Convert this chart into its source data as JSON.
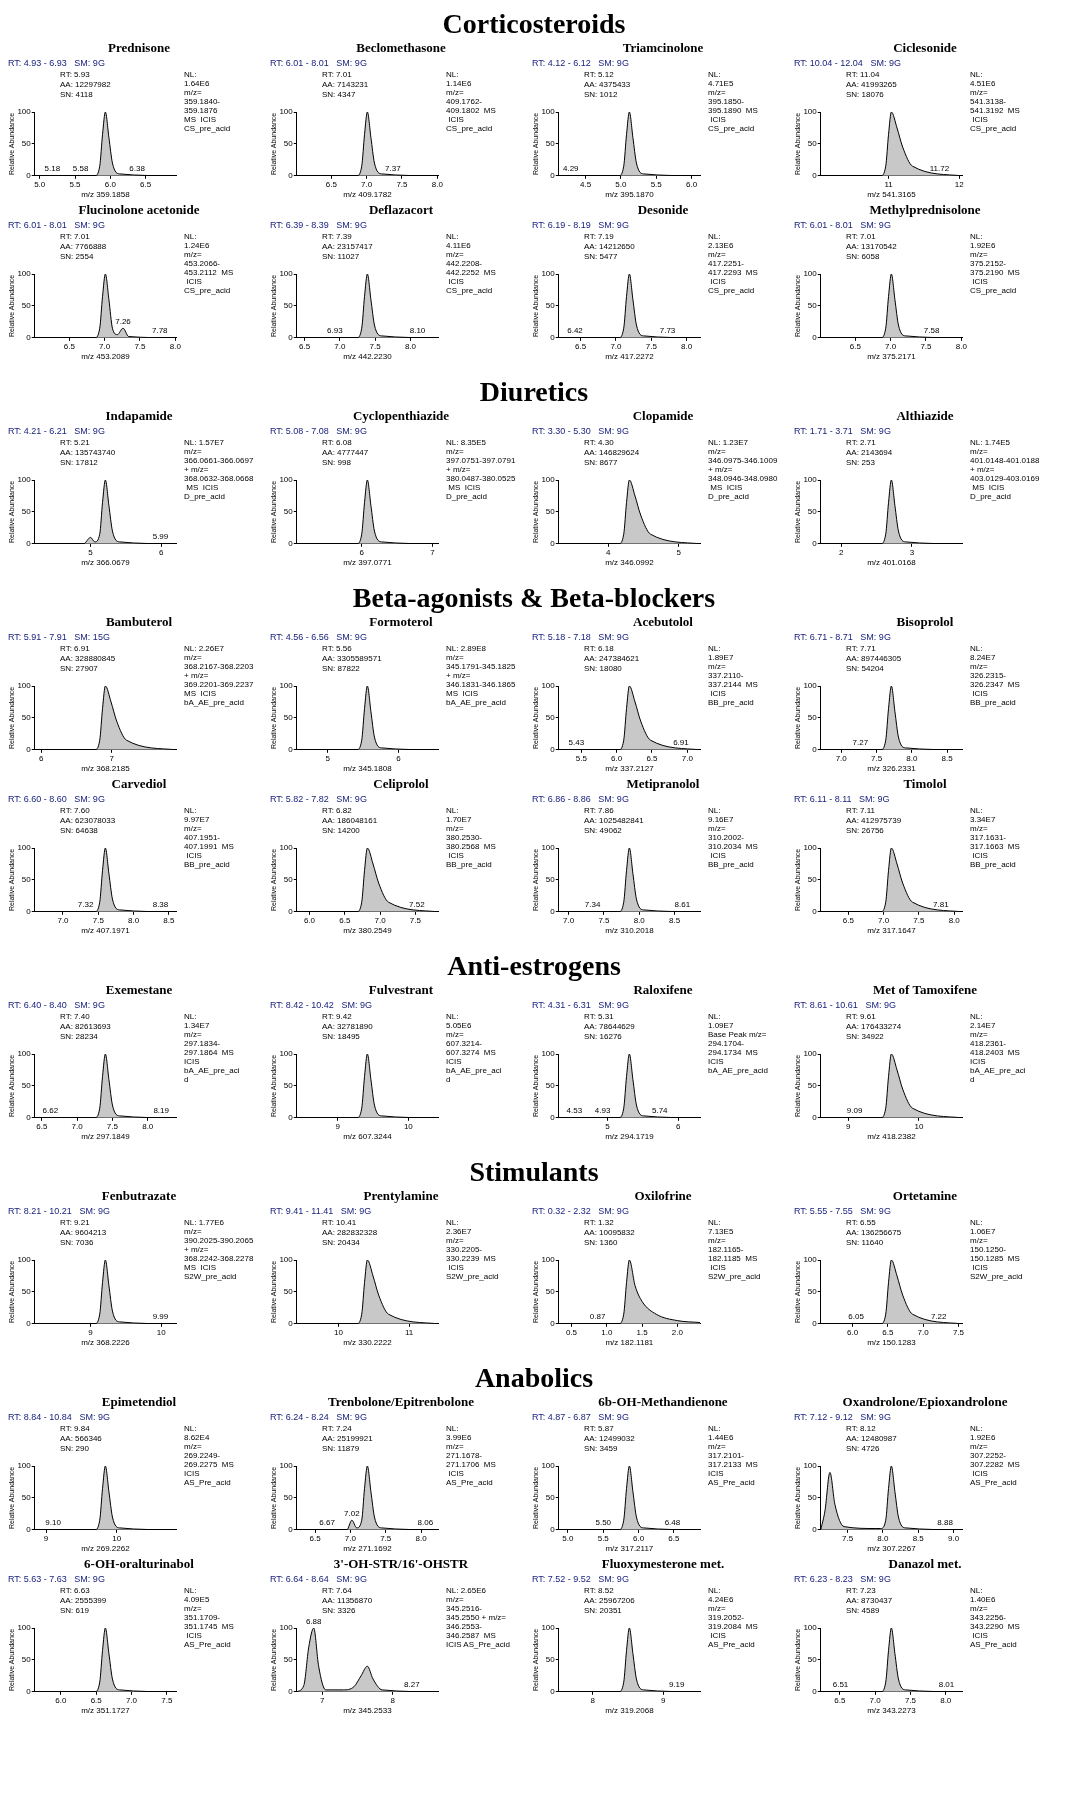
{
  "chart_data": [
    {
      "type": "area",
      "title": "Prednisone",
      "color": "#c8c8c8",
      "xlabel": "m/z 359.1858",
      "ylabel": "Relative Abundance",
      "x": [
        4.93,
        5.78,
        5.85,
        5.89,
        5.93,
        5.98,
        6.03,
        6.13,
        6.93
      ],
      "values": [
        0,
        0,
        15,
        65,
        100,
        60,
        20,
        3,
        0
      ],
      "xlim": [
        4.93,
        6.93
      ],
      "xticks": [
        {
          "value": 5,
          "label": "5.0"
        },
        5.5,
        {
          "value": 6,
          "label": "6.0"
        },
        6.5
      ],
      "ylim": [
        0,
        100
      ],
      "yticks": [
        0,
        50,
        100
      ],
      "annotations": [
        "RT: 4.93 - 6.93   SM: 9G",
        "RT: 5.93\nAA: 12297982\nSN: 4118",
        "NL:\n1.64E6\nm/z=\n359.1840-\n359.1876\nMS  ICIS\nCS_pre_acid",
        {
          "text": "5.18",
          "x": 5.18,
          "y": 2
        },
        {
          "text": "5.58",
          "x": 5.58,
          "y": 2
        },
        {
          "text": "6.38",
          "x": 6.38,
          "y": 2
        }
      ]
    },
    {
      "type": "area",
      "subtitle": "Corticosteroids",
      "title": "Beclomethasone",
      "color": "#c8c8c8",
      "xlabel": "m/z 409.1782",
      "ylabel": "Relative Abundance",
      "x": [
        6.01,
        6.86,
        6.93,
        6.97,
        7.01,
        7.06,
        7.11,
        7.21,
        8.01
      ],
      "values": [
        0,
        0,
        15,
        65,
        100,
        60,
        20,
        3,
        0
      ],
      "xlim": [
        6.01,
        8.01
      ],
      "xticks": [
        6.5,
        {
          "value": 7,
          "label": "7.0"
        },
        7.5,
        {
          "value": 8,
          "label": "8.0"
        }
      ],
      "ylim": [
        0,
        100
      ],
      "yticks": [
        0,
        50,
        100
      ],
      "annotations": [
        "RT: 6.01 - 8.01   SM: 9G",
        "RT: 7.01\nAA: 7143231\nSN: 4347",
        "NL:\n1.14E6\nm/z=\n409.1762-\n409.1802  MS\n ICIS\nCS_pre_acid",
        {
          "text": "7.37",
          "x": 7.37,
          "y": 2
        }
      ]
    },
    {
      "type": "area",
      "title": "Triamcinolone",
      "color": "#c8c8c8",
      "xlabel": "m/z 395.1870",
      "ylabel": "Relative Abundance",
      "x": [
        4.12,
        4.97,
        5.04,
        5.08,
        5.12,
        5.17,
        5.22,
        5.32,
        6.12
      ],
      "values": [
        0,
        0,
        15,
        65,
        100,
        60,
        20,
        3,
        0
      ],
      "xlim": [
        4.12,
        6.12
      ],
      "xticks": [
        4.5,
        {
          "value": 5,
          "label": "5.0"
        },
        5.5,
        {
          "value": 6,
          "label": "6.0"
        }
      ],
      "ylim": [
        0,
        100
      ],
      "yticks": [
        0,
        50,
        100
      ],
      "annotations": [
        "RT: 4.12 - 6.12   SM: 9G",
        "RT: 5.12\nAA: 4375433\nSN: 1012",
        "NL:\n4.71E5\nm/z=\n395.1850-\n395.1890  MS\n ICIS\nCS_pre_acid",
        {
          "text": "4.29",
          "x": 4.29,
          "y": 2
        }
      ]
    },
    {
      "type": "area",
      "title": "Ciclesonide",
      "color": "#c8c8c8",
      "xlabel": "m/z 541.3165",
      "ylabel": "Relative Abundance",
      "x": [
        10.04,
        10.89,
        10.96,
        11.0,
        11.04,
        11.12,
        11.2,
        11.34,
        12.04
      ],
      "values": [
        0,
        0,
        15,
        65,
        100,
        75,
        45,
        15,
        0
      ],
      "xlim": [
        10.04,
        12.04
      ],
      "xticks": [
        11,
        12
      ],
      "ylim": [
        0,
        100
      ],
      "yticks": [
        0,
        50,
        100
      ],
      "annotations": [
        "RT: 10.04 - 12.04   SM: 9G",
        "RT: 11.04\nAA: 41993265\nSN: 18076",
        "NL:\n4.51E6\nm/z=\n541.3138-\n541.3192  MS\n ICIS\nCS_pre_acid",
        {
          "text": "11.72",
          "x": 11.72,
          "y": 2
        }
      ]
    },
    {
      "type": "area",
      "title": "Flucinolone acetonide",
      "color": "#c8c8c8",
      "xlabel": "m/z 453.2089",
      "ylabel": "Relative Abundance",
      "x": [
        6.01,
        6.86,
        6.93,
        6.97,
        7.01,
        7.06,
        7.11,
        7.18,
        7.26,
        7.34,
        8.01
      ],
      "values": [
        0,
        0,
        15,
        65,
        100,
        60,
        15,
        5,
        15,
        2,
        0
      ],
      "xlim": [
        6.01,
        8.01
      ],
      "xticks": [
        6.5,
        {
          "value": 7,
          "label": "7.0"
        },
        7.5,
        {
          "value": 8,
          "label": "8.0"
        }
      ],
      "ylim": [
        0,
        100
      ],
      "yticks": [
        0,
        50,
        100
      ],
      "annotations": [
        "RT: 6.01 - 8.01   SM: 9G",
        "RT: 7.01\nAA: 7766888\nSN: 2554",
        "NL:\n1.24E6\nm/z=\n453.2066-\n453.2112  MS\n ICIS\nCS_pre_acid",
        {
          "text": "7.26",
          "x": 7.26,
          "y": 15
        },
        {
          "text": "7.78",
          "x": 7.78,
          "y": 2
        }
      ]
    },
    {
      "type": "area",
      "title": "Deflazacort",
      "color": "#c8c8c8",
      "xlabel": "m/z 442.2230",
      "ylabel": "Relative Abundance",
      "x": [
        6.39,
        7.24,
        7.31,
        7.35,
        7.39,
        7.44,
        7.49,
        7.59,
        8.39
      ],
      "values": [
        0,
        0,
        15,
        65,
        100,
        60,
        20,
        3,
        0
      ],
      "xlim": [
        6.39,
        8.39
      ],
      "xticks": [
        6.5,
        {
          "value": 7,
          "label": "7.0"
        },
        7.5,
        {
          "value": 8,
          "label": "8.0"
        }
      ],
      "ylim": [
        0,
        100
      ],
      "yticks": [
        0,
        50,
        100
      ],
      "annotations": [
        "RT: 6.39 - 8.39   SM: 9G",
        "RT: 7.39\nAA: 23157417\nSN: 11027",
        "NL:\n4.11E6\nm/z=\n442.2208-\n442.2252  MS\n ICIS\nCS_pre_acid",
        {
          "text": "6.93",
          "x": 6.93,
          "y": 2
        },
        {
          "text": "8.10",
          "x": 8.1,
          "y": 2
        }
      ]
    },
    {
      "type": "area",
      "title": "Desonide",
      "color": "#c8c8c8",
      "xlabel": "m/z 417.2272",
      "ylabel": "Relative Abundance",
      "x": [
        6.19,
        7.04,
        7.11,
        7.15,
        7.19,
        7.24,
        7.29,
        7.39,
        8.19
      ],
      "values": [
        0,
        0,
        15,
        65,
        100,
        60,
        20,
        3,
        0
      ],
      "xlim": [
        6.19,
        8.19
      ],
      "xticks": [
        6.5,
        {
          "value": 7,
          "label": "7.0"
        },
        7.5,
        {
          "value": 8,
          "label": "8.0"
        }
      ],
      "ylim": [
        0,
        100
      ],
      "yticks": [
        0,
        50,
        100
      ],
      "annotations": [
        "RT: 6.19 - 8.19   SM: 9G",
        "RT: 7.19\nAA: 14212650\nSN: 5477",
        "NL:\n2.13E6\nm/z=\n417.2251-\n417.2293  MS\n ICIS\nCS_pre_acid",
        {
          "text": "6.42",
          "x": 6.42,
          "y": 2
        },
        {
          "text": "7.73",
          "x": 7.73,
          "y": 2
        }
      ]
    },
    {
      "type": "area",
      "title": "Methylprednisolone",
      "color": "#c8c8c8",
      "xlabel": "m/z 375.2171",
      "ylabel": "Relative Abundance",
      "x": [
        6.01,
        6.86,
        6.93,
        6.97,
        7.01,
        7.06,
        7.11,
        7.21,
        8.01
      ],
      "values": [
        0,
        0,
        15,
        65,
        100,
        60,
        20,
        3,
        0
      ],
      "xlim": [
        6.01,
        8.01
      ],
      "xticks": [
        6.5,
        {
          "value": 7,
          "label": "7.0"
        },
        7.5,
        {
          "value": 8,
          "label": "8.0"
        }
      ],
      "ylim": [
        0,
        100
      ],
      "yticks": [
        0,
        50,
        100
      ],
      "annotations": [
        "RT: 6.01 - 8.01   SM: 9G",
        "RT: 7.01\nAA: 13170542\nSN: 6058",
        "NL:\n1.92E6\nm/z=\n375.2152-\n375.2190  MS\n ICIS\nCS_pre_acid",
        {
          "text": "7.58",
          "x": 7.58,
          "y": 2
        }
      ]
    },
    {
      "type": "area",
      "title": "Indapamide",
      "color": "#c8c8c8",
      "xlabel": "m/z 366.0679",
      "ylabel": "Relative Abundance",
      "x": [
        4.21,
        4.9,
        5.0,
        5.06,
        5.13,
        5.17,
        5.21,
        5.26,
        5.31,
        5.41,
        6.21
      ],
      "values": [
        0,
        0,
        10,
        3,
        15,
        65,
        100,
        60,
        20,
        3,
        0
      ],
      "xlim": [
        4.21,
        6.21
      ],
      "xticks": [
        5,
        6
      ],
      "ylim": [
        0,
        100
      ],
      "yticks": [
        0,
        50,
        100
      ],
      "annotations": [
        "RT: 4.21 - 6.21   SM: 9G",
        "RT: 5.21\nAA: 135743740\nSN: 17812",
        "NL: 1.57E7\nm/z=\n366.0661-366.0697\n+ m/z=\n368.0632-368.0668\n MS  ICIS\nD_pre_acid",
        {
          "text": "5.99",
          "x": 5.99,
          "y": 2
        }
      ]
    },
    {
      "type": "area",
      "title": "Cyclopenthiazide",
      "color": "#c8c8c8",
      "xlabel": "m/z 397.0771",
      "ylabel": "Relative Abundance",
      "x": [
        5.08,
        5.93,
        6.0,
        6.04,
        6.08,
        6.13,
        6.18,
        6.28,
        7.08
      ],
      "values": [
        0,
        0,
        15,
        65,
        100,
        60,
        20,
        3,
        0
      ],
      "xlim": [
        5.08,
        7.08
      ],
      "xticks": [
        6,
        7
      ],
      "ylim": [
        0,
        100
      ],
      "yticks": [
        0,
        50,
        100
      ],
      "annotations": [
        "RT: 5.08 - 7.08   SM: 9G",
        "RT: 6.08\nAA: 4777447\nSN: 998",
        "NL: 8.35E5\nm/z=\n397.0751-397.0791\n+ m/z=\n380.0487-380.0525\n MS  ICIS\nD_pre_acid"
      ]
    },
    {
      "type": "area",
      "subtitle": "Diuretics",
      "title": "Clopamide",
      "color": "#c8c8c8",
      "xlabel": "m/z 346.0992",
      "ylabel": "Relative Abundance",
      "x": [
        3.3,
        4.15,
        4.22,
        4.26,
        4.3,
        4.38,
        4.46,
        4.6,
        5.3
      ],
      "values": [
        0,
        0,
        15,
        65,
        100,
        75,
        45,
        15,
        0
      ],
      "xlim": [
        3.3,
        5.3
      ],
      "xticks": [
        4,
        5
      ],
      "ylim": [
        0,
        100
      ],
      "yticks": [
        0,
        50,
        100
      ],
      "annotations": [
        "RT: 3.30 - 5.30   SM: 9G",
        "RT: 4.30\nAA: 146829624\nSN: 8677",
        "NL: 1.23E7\nm/z=\n346.0975-346.1009\n+ m/z=\n348.0946-348.0980\n MS  ICIS\nD_pre_acid"
      ]
    },
    {
      "type": "area",
      "title": "Althiazide",
      "color": "#c8c8c8",
      "xlabel": "m/z 401.0168",
      "ylabel": "Relative Abundance",
      "x": [
        1.71,
        2.56,
        2.63,
        2.67,
        2.71,
        2.76,
        2.81,
        2.91,
        3.71
      ],
      "values": [
        0,
        0,
        15,
        65,
        100,
        60,
        20,
        3,
        0
      ],
      "xlim": [
        1.71,
        3.71
      ],
      "xticks": [
        2,
        3
      ],
      "ylim": [
        0,
        100
      ],
      "yticks": [
        0,
        50,
        100
      ],
      "annotations": [
        "RT: 1.71 - 3.71   SM: 9G",
        "RT: 2.71\nAA: 2143694\nSN: 253",
        "NL: 1.74E5\nm/z=\n401.0148-401.0188\n+ m/z=\n403.0129-403.0169\n MS  ICIS\nD_pre_acid"
      ]
    },
    {
      "type": "area",
      "title": "Bambuterol",
      "color": "#c8c8c8",
      "xlabel": "m/z 368.2185",
      "ylabel": "Relative Abundance",
      "x": [
        5.91,
        6.76,
        6.83,
        6.87,
        6.91,
        6.99,
        7.07,
        7.21,
        7.91
      ],
      "values": [
        0,
        0,
        15,
        65,
        100,
        75,
        45,
        15,
        0
      ],
      "xlim": [
        5.91,
        7.91
      ],
      "xticks": [
        6,
        7
      ],
      "ylim": [
        0,
        100
      ],
      "yticks": [
        0,
        50,
        100
      ],
      "annotations": [
        "RT: 5.91 - 7.91   SM: 15G",
        "RT: 6.91\nAA: 328880845\nSN: 27907",
        "NL: 2.26E7\nm/z=\n368.2167-368.2203\n+ m/z=\n369.2201-369.2237\nMS  ICIS\nbA_AE_pre_acid"
      ]
    },
    {
      "type": "area",
      "subtitle": "Beta-agonists & Beta-blockers",
      "title": "Formoterol",
      "color": "#c8c8c8",
      "xlabel": "m/z 345.1808",
      "ylabel": "Relative Abundance",
      "x": [
        4.56,
        5.41,
        5.48,
        5.52,
        5.56,
        5.61,
        5.66,
        5.76,
        6.56
      ],
      "values": [
        0,
        0,
        15,
        65,
        100,
        60,
        20,
        3,
        0
      ],
      "xlim": [
        4.56,
        6.56
      ],
      "xticks": [
        5,
        6
      ],
      "ylim": [
        0,
        100
      ],
      "yticks": [
        0,
        50,
        100
      ],
      "annotations": [
        "RT: 4.56 - 6.56   SM: 9G",
        "RT: 5.56\nAA: 3305589571\nSN: 87822",
        "NL: 2.89E8\nm/z=\n345.1791-345.1825\n+ m/z=\n346.1831-346.1865\nMS  ICIS\nbA_AE_pre_acid"
      ]
    },
    {
      "type": "area",
      "title": "Acebutolol",
      "color": "#c8c8c8",
      "xlabel": "m/z 337.2127",
      "ylabel": "Relative Abundance",
      "x": [
        5.18,
        6.03,
        6.1,
        6.14,
        6.18,
        6.26,
        6.34,
        6.48,
        7.18
      ],
      "values": [
        0,
        0,
        15,
        65,
        100,
        75,
        45,
        15,
        0
      ],
      "xlim": [
        5.18,
        7.18
      ],
      "xticks": [
        5.5,
        {
          "value": 6,
          "label": "6.0"
        },
        6.5,
        {
          "value": 7,
          "label": "7.0"
        }
      ],
      "ylim": [
        0,
        100
      ],
      "yticks": [
        0,
        50,
        100
      ],
      "annotations": [
        "RT: 5.18 - 7.18   SM: 9G",
        "RT: 6.18\nAA: 247384621\nSN: 18080",
        "NL:\n1.89E7\nm/z=\n337.2110-\n337.2144  MS\n ICIS\nBB_pre_acid",
        {
          "text": "5.43",
          "x": 5.43,
          "y": 2
        },
        {
          "text": "6.91",
          "x": 6.91,
          "y": 2
        }
      ]
    },
    {
      "type": "area",
      "title": "Bisoprolol",
      "color": "#c8c8c8",
      "xlabel": "m/z 326.2331",
      "ylabel": "Relative Abundance",
      "x": [
        6.71,
        7.56,
        7.63,
        7.67,
        7.71,
        7.76,
        7.81,
        7.91,
        8.71
      ],
      "values": [
        0,
        0,
        15,
        65,
        100,
        60,
        20,
        3,
        0
      ],
      "xlim": [
        6.71,
        8.71
      ],
      "xticks": [
        {
          "value": 7,
          "label": "7.0"
        },
        7.5,
        {
          "value": 8,
          "label": "8.0"
        },
        8.5
      ],
      "ylim": [
        0,
        100
      ],
      "yticks": [
        0,
        50,
        100
      ],
      "annotations": [
        "RT: 6.71 - 8.71   SM: 9G",
        "RT: 7.71\nAA: 897446305\nSN: 54204",
        "NL:\n8.24E7\nm/z=\n326.2315-\n326.2347  MS\n ICIS\nBB_pre_acid",
        {
          "text": "7.27",
          "x": 7.27,
          "y": 2
        }
      ]
    },
    {
      "type": "area",
      "title": "Carvediol",
      "color": "#c8c8c8",
      "xlabel": "m/z 407.1971",
      "ylabel": "Relative Abundance",
      "x": [
        6.6,
        7.45,
        7.52,
        7.56,
        7.6,
        7.65,
        7.7,
        7.8,
        8.6
      ],
      "values": [
        0,
        0,
        15,
        65,
        100,
        60,
        20,
        3,
        0
      ],
      "xlim": [
        6.6,
        8.6
      ],
      "xticks": [
        {
          "value": 7,
          "label": "7.0"
        },
        7.5,
        {
          "value": 8,
          "label": "8.0"
        },
        8.5
      ],
      "ylim": [
        0,
        100
      ],
      "yticks": [
        0,
        50,
        100
      ],
      "annotations": [
        "RT: 6.60 - 8.60   SM: 9G",
        "RT: 7.60\nAA: 623078033\nSN: 64638",
        "NL:\n9.97E7\nm/z=\n407.1951-\n407.1991  MS\n ICIS\nBB_pre_acid",
        {
          "text": "7.32",
          "x": 7.32,
          "y": 2
        },
        {
          "text": "8.38",
          "x": 8.38,
          "y": 2
        }
      ]
    },
    {
      "type": "area",
      "title": "Celiprolol",
      "color": "#c8c8c8",
      "xlabel": "m/z 380.2549",
      "ylabel": "Relative Abundance",
      "x": [
        5.82,
        6.67,
        6.74,
        6.78,
        6.82,
        6.9,
        6.98,
        7.12,
        7.82
      ],
      "values": [
        0,
        0,
        15,
        65,
        100,
        75,
        45,
        15,
        0
      ],
      "xlim": [
        5.82,
        7.82
      ],
      "xticks": [
        {
          "value": 6,
          "label": "6.0"
        },
        6.5,
        {
          "value": 7,
          "label": "7.0"
        },
        7.5
      ],
      "ylim": [
        0,
        100
      ],
      "yticks": [
        0,
        50,
        100
      ],
      "annotations": [
        "RT: 5.82 - 7.82   SM: 9G",
        "RT: 6.82\nAA: 186048161\nSN: 14200",
        "NL:\n1.70E7\nm/z=\n380.2530-\n380.2568  MS\n ICIS\nBB_pre_acid",
        {
          "text": "7.52",
          "x": 7.52,
          "y": 2
        }
      ]
    },
    {
      "type": "area",
      "title": "Metipranolol",
      "color": "#c8c8c8",
      "xlabel": "m/z 310.2018",
      "ylabel": "Relative Abundance",
      "x": [
        6.86,
        7.71,
        7.78,
        7.82,
        7.86,
        7.91,
        7.96,
        8.06,
        8.86
      ],
      "values": [
        0,
        0,
        15,
        65,
        100,
        60,
        20,
        3,
        0
      ],
      "xlim": [
        6.86,
        8.86
      ],
      "xticks": [
        {
          "value": 7,
          "label": "7.0"
        },
        7.5,
        {
          "value": 8,
          "label": "8.0"
        },
        8.5
      ],
      "ylim": [
        0,
        100
      ],
      "yticks": [
        0,
        50,
        100
      ],
      "annotations": [
        "RT: 6.86 - 8.86   SM: 9G",
        "RT: 7.86\nAA: 1025482841\nSN: 49062",
        "NL:\n9.16E7\nm/z=\n310.2002-\n310.2034  MS\n ICIS\nBB_pre_acid",
        {
          "text": "7.34",
          "x": 7.34,
          "y": 2
        },
        {
          "text": "8.61",
          "x": 8.61,
          "y": 2
        }
      ]
    },
    {
      "type": "area",
      "title": "Timolol",
      "color": "#c8c8c8",
      "xlabel": "m/z 317.1647",
      "ylabel": "Relative Abundance",
      "x": [
        6.11,
        6.96,
        7.03,
        7.07,
        7.11,
        7.19,
        7.27,
        7.41,
        8.11
      ],
      "values": [
        0,
        0,
        15,
        65,
        100,
        75,
        45,
        15,
        0
      ],
      "xlim": [
        6.11,
        8.11
      ],
      "xticks": [
        6.5,
        {
          "value": 7,
          "label": "7.0"
        },
        7.5,
        {
          "value": 8,
          "label": "8.0"
        }
      ],
      "ylim": [
        0,
        100
      ],
      "yticks": [
        0,
        50,
        100
      ],
      "annotations": [
        "RT: 6.11 - 8.11   SM: 9G",
        "RT: 7.11\nAA: 412975739\nSN: 26756",
        "NL:\n3.34E7\nm/z=\n317.1631-\n317.1663  MS\n ICIS\nBB_pre_acid",
        {
          "text": "7.81",
          "x": 7.81,
          "y": 2
        }
      ]
    },
    {
      "type": "area",
      "title": "Exemestane",
      "color": "#c8c8c8",
      "xlabel": "m/z 297.1849",
      "ylabel": "Relative Abundance",
      "x": [
        6.4,
        7.25,
        7.32,
        7.36,
        7.4,
        7.45,
        7.5,
        7.6,
        8.4
      ],
      "values": [
        0,
        0,
        15,
        65,
        100,
        60,
        20,
        3,
        0
      ],
      "xlim": [
        6.4,
        8.4
      ],
      "xticks": [
        6.5,
        {
          "value": 7,
          "label": "7.0"
        },
        7.5,
        {
          "value": 8,
          "label": "8.0"
        }
      ],
      "ylim": [
        0,
        100
      ],
      "yticks": [
        0,
        50,
        100
      ],
      "annotations": [
        "RT: 6.40 - 8.40   SM: 9G",
        "RT: 7.40\nAA: 82613693\nSN: 28234",
        "NL:\n1.34E7\nm/z=\n297.1834-\n297.1864  MS\nICIS\nbA_AE_pre_aci\nd",
        {
          "text": "6.62",
          "x": 6.62,
          "y": 2
        },
        {
          "text": "8.19",
          "x": 8.19,
          "y": 2
        }
      ]
    },
    {
      "type": "area",
      "subtitle": "Anti-estrogens",
      "title": "Fulvestrant",
      "color": "#c8c8c8",
      "xlabel": "m/z 607.3244",
      "ylabel": "Relative Abundance",
      "x": [
        8.42,
        9.27,
        9.34,
        9.38,
        9.42,
        9.47,
        9.52,
        9.62,
        10.42
      ],
      "values": [
        0,
        0,
        15,
        65,
        100,
        60,
        20,
        3,
        0
      ],
      "xlim": [
        8.42,
        10.42
      ],
      "xticks": [
        9,
        10
      ],
      "ylim": [
        0,
        100
      ],
      "yticks": [
        0,
        50,
        100
      ],
      "annotations": [
        "RT: 8.42 - 10.42   SM: 9G",
        "RT: 9.42\nAA: 32781890\nSN: 18495",
        "NL:\n5.05E6\nm/z=\n607.3214-\n607.3274  MS\nICIS\nbA_AE_pre_aci\nd"
      ]
    },
    {
      "type": "area",
      "title": "Raloxifene",
      "color": "#c8c8c8",
      "xlabel": "m/z 294.1719",
      "ylabel": "Relative Abundance",
      "x": [
        4.31,
        5.16,
        5.23,
        5.27,
        5.31,
        5.36,
        5.41,
        5.51,
        6.31
      ],
      "values": [
        0,
        0,
        15,
        65,
        100,
        60,
        20,
        3,
        0
      ],
      "xlim": [
        4.31,
        6.31
      ],
      "xticks": [
        5,
        6
      ],
      "ylim": [
        0,
        100
      ],
      "yticks": [
        0,
        50,
        100
      ],
      "annotations": [
        "RT: 4.31 - 6.31   SM: 9G",
        "RT: 5.31\nAA: 78644629\nSN: 16276",
        "NL:\n1.09E7\nBase Peak m/z=\n294.1704-\n294.1734  MS\nICIS\nbA_AE_pre_acid",
        {
          "text": "4.53",
          "x": 4.53,
          "y": 2
        },
        {
          "text": "4.93",
          "x": 4.93,
          "y": 2
        },
        {
          "text": "5.74",
          "x": 5.74,
          "y": 2
        }
      ]
    },
    {
      "type": "area",
      "title": "Met of Tamoxifene",
      "color": "#c8c8c8",
      "xlabel": "m/z 418.2382",
      "ylabel": "Relative Abundance",
      "x": [
        8.61,
        9.46,
        9.53,
        9.57,
        9.61,
        9.69,
        9.77,
        9.91,
        10.61
      ],
      "values": [
        0,
        0,
        15,
        65,
        100,
        75,
        45,
        15,
        0
      ],
      "xlim": [
        8.61,
        10.61
      ],
      "xticks": [
        9,
        10
      ],
      "ylim": [
        0,
        100
      ],
      "yticks": [
        0,
        50,
        100
      ],
      "annotations": [
        "RT: 8.61 - 10.61   SM: 9G",
        "RT: 9.61\nAA: 176433274\nSN: 34922",
        "NL:\n2.14E7\nm/z=\n418.2361-\n418.2403  MS\nICIS\nbA_AE_pre_aci\nd",
        {
          "text": "9.09",
          "x": 9.09,
          "y": 2
        }
      ]
    },
    {
      "type": "area",
      "title": "Fenbutrazate",
      "color": "#c8c8c8",
      "xlabel": "m/z 368.2226",
      "ylabel": "Relative Abundance",
      "x": [
        8.21,
        9.06,
        9.13,
        9.17,
        9.21,
        9.26,
        9.31,
        9.41,
        10.21
      ],
      "values": [
        0,
        0,
        15,
        65,
        100,
        60,
        20,
        3,
        0
      ],
      "xlim": [
        8.21,
        10.21
      ],
      "xticks": [
        9,
        10
      ],
      "ylim": [
        0,
        100
      ],
      "yticks": [
        0,
        50,
        100
      ],
      "annotations": [
        "RT: 8.21 - 10.21   SM: 9G",
        "RT: 9.21\nAA: 9604213\nSN: 7036",
        "NL: 1.77E6\nm/z=\n390.2025-390.2065\n+ m/z=\n368.2242-368.2278\nMS  ICIS\nS2W_pre_acid",
        {
          "text": "9.99",
          "x": 9.99,
          "y": 2
        }
      ]
    },
    {
      "type": "area",
      "title": "Prentylamine",
      "color": "#c8c8c8",
      "xlabel": "m/z 330.2222",
      "ylabel": "Relative Abundance",
      "x": [
        9.41,
        10.26,
        10.33,
        10.37,
        10.41,
        10.49,
        10.57,
        10.71,
        11.41
      ],
      "values": [
        0,
        0,
        15,
        65,
        100,
        75,
        45,
        15,
        0
      ],
      "xlim": [
        9.41,
        11.41
      ],
      "xticks": [
        10,
        11
      ],
      "ylim": [
        0,
        100
      ],
      "yticks": [
        0,
        50,
        100
      ],
      "annotations": [
        "RT: 9.41 - 11.41   SM: 9G",
        "RT: 10.41\nAA: 282832328\nSN: 20434",
        "NL:\n2.36E7\nm/z=\n330.2205-\n330.2239  MS\n ICIS\nS2W_pre_acid"
      ]
    },
    {
      "type": "area",
      "subtitle": "Stimulants",
      "title": "Oxilofrine",
      "color": "#c8c8c8",
      "xlabel": "m/z 182.1181",
      "ylabel": "Relative Abundance",
      "x": [
        0.32,
        1.17,
        1.24,
        1.28,
        1.32,
        1.4,
        1.5,
        1.7,
        2.0,
        2.32
      ],
      "values": [
        0,
        0,
        15,
        65,
        100,
        60,
        35,
        15,
        5,
        2
      ],
      "xlim": [
        0.32,
        2.32
      ],
      "xticks": [
        0.5,
        {
          "value": 1,
          "label": "1.0"
        },
        1.5,
        {
          "value": 2,
          "label": "2.0"
        }
      ],
      "ylim": [
        0,
        100
      ],
      "yticks": [
        0,
        50,
        100
      ],
      "annotations": [
        "RT: 0.32 - 2.32   SM: 9G",
        "RT: 1.32\nAA: 10095832\nSN: 1360",
        "NL:\n7.13E5\nm/z=\n182.1165-\n182.1185  MS\n ICIS\nS2W_pre_acid",
        {
          "text": "0.87",
          "x": 0.87,
          "y": 2
        }
      ]
    },
    {
      "type": "area",
      "title": "Ortetamine",
      "color": "#c8c8c8",
      "xlabel": "m/z 150.1283",
      "ylabel": "Relative Abundance",
      "x": [
        5.55,
        6.4,
        6.47,
        6.51,
        6.55,
        6.63,
        6.71,
        6.85,
        7.55
      ],
      "values": [
        0,
        0,
        15,
        65,
        100,
        75,
        45,
        15,
        0
      ],
      "xlim": [
        5.55,
        7.55
      ],
      "xticks": [
        {
          "value": 6,
          "label": "6.0"
        },
        6.5,
        {
          "value": 7,
          "label": "7.0"
        },
        7.5
      ],
      "ylim": [
        0,
        100
      ],
      "yticks": [
        0,
        50,
        100
      ],
      "annotations": [
        "RT: 5.55 - 7.55   SM: 9G",
        "RT: 6.55\nAA: 136256675\nSN: 11640",
        "NL:\n1.06E7\nm/z=\n150.1250-\n150.1285  MS\n ICIS\nS2W_pre_acid",
        {
          "text": "6.05",
          "x": 6.05,
          "y": 2
        },
        {
          "text": "7.22",
          "x": 7.22,
          "y": 2
        }
      ]
    },
    {
      "type": "area",
      "title": "Epimetendiol",
      "color": "#c8c8c8",
      "xlabel": "m/z 269.2262",
      "ylabel": "Relative Abundance",
      "x": [
        8.84,
        9.69,
        9.76,
        9.8,
        9.84,
        9.89,
        9.94,
        10.04,
        10.84
      ],
      "values": [
        0,
        0,
        15,
        65,
        100,
        60,
        20,
        3,
        0
      ],
      "xlim": [
        8.84,
        10.84
      ],
      "xticks": [
        9,
        10
      ],
      "ylim": [
        0,
        100
      ],
      "yticks": [
        0,
        50,
        100
      ],
      "annotations": [
        "RT: 8.84 - 10.84   SM: 9G",
        "RT: 9.84\nAA: 566346\nSN: 290",
        "NL:\n8.62E4\nm/z=\n269.2249-\n269.2275  MS\nICIS\nAS_Pre_acid",
        {
          "text": "9.10",
          "x": 9.1,
          "y": 2
        }
      ]
    },
    {
      "type": "area",
      "title": "Trenbolone/Epitrenbolone",
      "color": "#c8c8c8",
      "xlabel": "m/z 271.1692",
      "ylabel": "Relative Abundance",
      "x": [
        6.24,
        6.95,
        7.02,
        7.09,
        7.16,
        7.2,
        7.24,
        7.29,
        7.34,
        7.44,
        8.24
      ],
      "values": [
        0,
        0,
        15,
        3,
        15,
        65,
        100,
        60,
        20,
        3,
        0
      ],
      "xlim": [
        6.24,
        8.24
      ],
      "xticks": [
        6.5,
        {
          "value": 7,
          "label": "7.0"
        },
        7.5,
        {
          "value": 8,
          "label": "8.0"
        }
      ],
      "ylim": [
        0,
        100
      ],
      "yticks": [
        0,
        50,
        100
      ],
      "annotations": [
        "RT: 6.24 - 8.24   SM: 9G",
        "RT: 7.24\nAA: 25199921\nSN: 11879",
        "NL:\n3.99E6\nm/z=\n271.1678-\n271.1706  MS\n ICIS\nAS_Pre_acid",
        {
          "text": "6.67",
          "x": 6.67,
          "y": 2
        },
        {
          "text": "7.02",
          "x": 7.02,
          "y": 15
        },
        {
          "text": "8.06",
          "x": 8.06,
          "y": 2
        }
      ]
    },
    {
      "type": "area",
      "subtitle": "Anabolics",
      "title": "6b-OH-Methandienone",
      "color": "#c8c8c8",
      "xlabel": "m/z 317.2117",
      "ylabel": "Relative Abundance",
      "x": [
        4.87,
        5.72,
        5.79,
        5.83,
        5.87,
        5.92,
        5.97,
        6.07,
        6.87
      ],
      "values": [
        0,
        0,
        15,
        65,
        100,
        60,
        20,
        3,
        0
      ],
      "xlim": [
        4.87,
        6.87
      ],
      "xticks": [
        {
          "value": 5,
          "label": "5.0"
        },
        5.5,
        {
          "value": 6,
          "label": "6.0"
        },
        6.5
      ],
      "ylim": [
        0,
        100
      ],
      "yticks": [
        0,
        50,
        100
      ],
      "annotations": [
        "RT: 4.87 - 6.87   SM: 9G",
        "RT: 5.87\nAA: 12499032\nSN: 3459",
        "NL:\n1.44E6\nm/z=\n317.2101-\n317.2133  MS\nICIS\nAS_Pre_acid",
        {
          "text": "5.50",
          "x": 5.5,
          "y": 2
        },
        {
          "text": "6.48",
          "x": 6.48,
          "y": 2
        }
      ]
    },
    {
      "type": "area",
      "title": "Oxandrolone/Epioxandrolone",
      "color": "#c8c8c8",
      "xlabel": "m/z 307.2267",
      "ylabel": "Relative Abundance",
      "x": [
        7.12,
        7.18,
        7.25,
        7.32,
        7.45,
        7.9,
        7.97,
        8.04,
        8.08,
        8.12,
        8.17,
        8.22,
        8.32,
        9.12
      ],
      "values": [
        0,
        30,
        90,
        40,
        5,
        2,
        2,
        15,
        65,
        100,
        60,
        20,
        3,
        0
      ],
      "xlim": [
        7.12,
        9.12
      ],
      "xticks": [
        7.5,
        {
          "value": 8,
          "label": "8.0"
        },
        8.5,
        {
          "value": 9,
          "label": "9.0"
        }
      ],
      "ylim": [
        0,
        100
      ],
      "yticks": [
        0,
        50,
        100
      ],
      "annotations": [
        "RT: 7.12 - 9.12   SM: 9G",
        "RT: 8.12\nAA: 12480987\nSN: 4726",
        "NL:\n1.92E6\nm/z=\n307.2252-\n307.2282  MS\n ICIS\nAS_Pre_acid",
        {
          "text": "8.88",
          "x": 8.88,
          "y": 2
        }
      ]
    },
    {
      "type": "area",
      "title": "6-OH-oralturinabol",
      "color": "#c8c8c8",
      "xlabel": "m/z 351.1727",
      "ylabel": "Relative Abundance",
      "x": [
        5.63,
        6.48,
        6.55,
        6.59,
        6.63,
        6.68,
        6.73,
        6.83,
        7.63
      ],
      "values": [
        0,
        0,
        15,
        65,
        100,
        60,
        20,
        3,
        0
      ],
      "xlim": [
        5.63,
        7.63
      ],
      "xticks": [
        {
          "value": 6,
          "label": "6.0"
        },
        6.5,
        {
          "value": 7,
          "label": "7.0"
        },
        7.5
      ],
      "ylim": [
        0,
        100
      ],
      "yticks": [
        0,
        50,
        100
      ],
      "annotations": [
        "RT: 5.63 - 7.63   SM: 9G",
        "RT: 6.63\nAA: 2555399\nSN: 619",
        "NL:\n4.09E5\nm/z=\n351.1709-\n351.1745  MS\n ICIS\nAS_Pre_acid"
      ]
    },
    {
      "type": "area",
      "title": "3'-OH-STR/16'-OHSTR",
      "color": "#c8c8c8",
      "xlabel": "m/z 345.2533",
      "ylabel": "Relative Abundance",
      "x": [
        6.64,
        6.74,
        6.81,
        6.88,
        6.95,
        7.05,
        7.3,
        7.45,
        7.55,
        7.64,
        7.72,
        7.85,
        8.64
      ],
      "values": [
        0,
        10,
        70,
        100,
        40,
        3,
        3,
        8,
        25,
        40,
        20,
        3,
        0
      ],
      "xlim": [
        6.64,
        8.64
      ],
      "xticks": [
        7,
        8
      ],
      "ylim": [
        0,
        100
      ],
      "yticks": [
        0,
        50,
        100
      ],
      "annotations": [
        "RT: 6.64 - 8.64   SM: 9G",
        "RT: 7.64\nAA: 11356870\nSN: 3326",
        "NL: 2.65E6\nm/z=\n345.2516-\n345.2550 + m/z=\n346.2553-\n346.2587  MS\nICIS AS_Pre_acid",
        {
          "text": "6.88",
          "x": 6.88,
          "y": 100
        },
        {
          "text": "8.27",
          "x": 8.27,
          "y": 2
        }
      ]
    },
    {
      "type": "area",
      "title": "Fluoxymesterone met.",
      "color": "#c8c8c8",
      "xlabel": "m/z 319.2068",
      "ylabel": "Relative Abundance",
      "x": [
        7.52,
        8.37,
        8.44,
        8.48,
        8.52,
        8.57,
        8.62,
        8.72,
        9.52
      ],
      "values": [
        0,
        0,
        15,
        65,
        100,
        60,
        20,
        3,
        0
      ],
      "xlim": [
        7.52,
        9.52
      ],
      "xticks": [
        8,
        9
      ],
      "ylim": [
        0,
        100
      ],
      "yticks": [
        0,
        50,
        100
      ],
      "annotations": [
        "RT: 7.52 - 9.52   SM: 9G",
        "RT: 8.52\nAA: 25967206\nSN: 20351",
        "NL:\n4.24E6\nm/z=\n319.2052-\n319.2084  MS\n ICIS\nAS_Pre_acid",
        {
          "text": "9.19",
          "x": 9.19,
          "y": 2
        }
      ]
    },
    {
      "type": "area",
      "title": "Danazol met.",
      "color": "#c8c8c8",
      "xlabel": "m/z 343.2273",
      "ylabel": "Relative Abundance",
      "x": [
        6.23,
        7.08,
        7.15,
        7.19,
        7.23,
        7.28,
        7.33,
        7.43,
        8.23
      ],
      "values": [
        0,
        0,
        15,
        65,
        100,
        60,
        20,
        3,
        0
      ],
      "xlim": [
        6.23,
        8.23
      ],
      "xticks": [
        6.5,
        {
          "value": 7,
          "label": "7.0"
        },
        7.5,
        {
          "value": 8,
          "label": "8.0"
        }
      ],
      "ylim": [
        0,
        100
      ],
      "yticks": [
        0,
        50,
        100
      ],
      "annotations": [
        "RT: 6.23 - 8.23   SM: 9G",
        "RT: 7.23\nAA: 8730437\nSN: 4589",
        "NL:\n1.40E6\nm/z=\n343.2256-\n343.2290  MS\n ICIS\nAS_Pre_acid",
        {
          "text": "6.51",
          "x": 6.51,
          "y": 2
        },
        {
          "text": "8.01",
          "x": 8.01,
          "y": 2
        }
      ]
    }
  ]
}
